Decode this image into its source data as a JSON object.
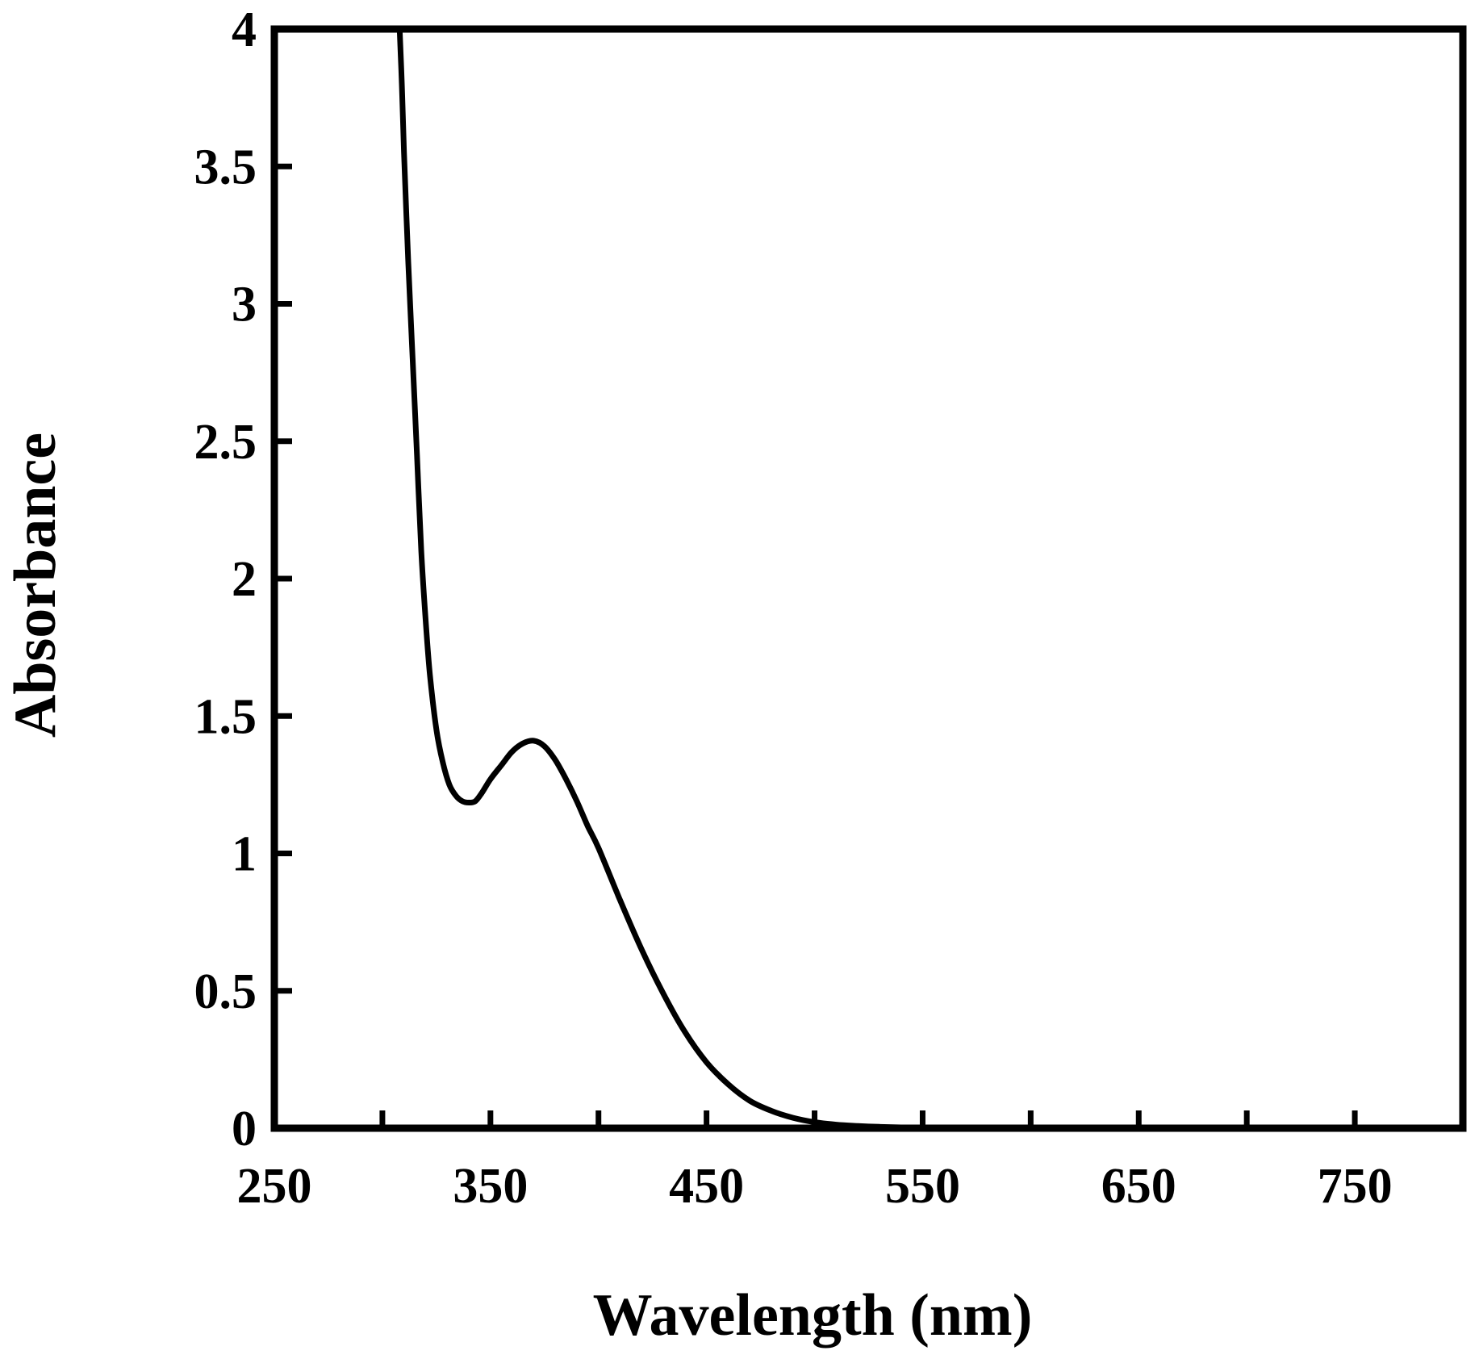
{
  "chart_data": {
    "type": "line",
    "title": "",
    "xlabel": "Wavelength (nm)",
    "ylabel": "Absorbance",
    "xlim": [
      250,
      800
    ],
    "ylim": [
      0,
      4
    ],
    "x_tick_labels": [
      "250",
      "350",
      "450",
      "550",
      "650",
      "750"
    ],
    "y_tick_labels": [
      "0",
      "0.5",
      "1",
      "1.5",
      "2",
      "2.5",
      "3",
      "3.5",
      "4"
    ],
    "grid": false,
    "legend": "none",
    "line_color": "#000000",
    "series": [
      {
        "x": [
          308,
          309,
          310,
          312,
          314,
          316,
          318,
          320,
          322,
          325,
          328,
          331,
          334,
          337,
          340,
          343,
          346,
          350,
          355,
          360,
          365,
          370,
          375,
          380,
          385,
          390,
          395,
          400,
          410,
          420,
          430,
          440,
          450,
          460,
          470,
          480,
          490,
          500,
          510,
          520,
          530,
          540,
          550,
          560,
          575,
          600,
          650,
          700,
          750,
          800
        ],
        "y": [
          4.0,
          3.8,
          3.55,
          3.15,
          2.8,
          2.45,
          2.1,
          1.85,
          1.65,
          1.45,
          1.33,
          1.25,
          1.21,
          1.19,
          1.185,
          1.19,
          1.22,
          1.27,
          1.32,
          1.37,
          1.4,
          1.41,
          1.39,
          1.34,
          1.27,
          1.19,
          1.1,
          1.02,
          0.83,
          0.65,
          0.49,
          0.35,
          0.24,
          0.16,
          0.1,
          0.063,
          0.038,
          0.022,
          0.013,
          0.008,
          0.005,
          0.003,
          0.002,
          0.001,
          0.0005,
          0.0002,
          0.0,
          0.0,
          0.0,
          0.0
        ]
      }
    ]
  }
}
